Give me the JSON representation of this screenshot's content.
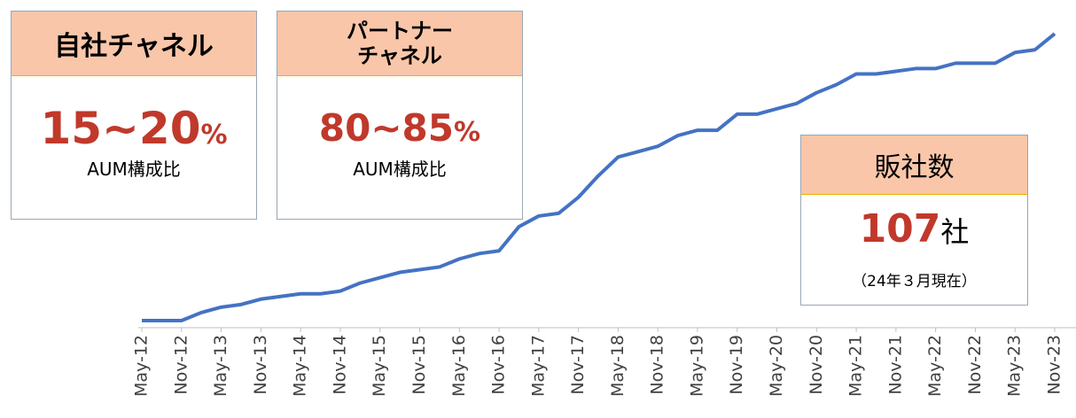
{
  "boxes": [
    {
      "title": "自社チャネル",
      "value": "15~20",
      "unit": "%",
      "caption": "AUM構成比"
    },
    {
      "title": "パートナーチャネル",
      "value": "80~85",
      "unit": "%",
      "caption": "AUM構成比"
    }
  ],
  "count_box": {
    "title": "販社数",
    "value": "107",
    "unit": "社",
    "note": "（24年３月現在）"
  },
  "chart_data": {
    "type": "line",
    "categories": [
      "May-12",
      null,
      "Nov-12",
      null,
      "May-13",
      null,
      "Nov-13",
      null,
      "May-14",
      null,
      "Nov-14",
      null,
      "May-15",
      null,
      "Nov-15",
      null,
      "May-16",
      null,
      "Nov-16",
      null,
      "May-17",
      null,
      "Nov-17",
      null,
      "May-18",
      null,
      "Nov-18",
      null,
      "May-19",
      null,
      "Nov-19",
      null,
      "May-20",
      null,
      "Nov-20",
      null,
      "May-21",
      null,
      "Nov-21",
      null,
      "May-22",
      null,
      "Nov-22",
      null,
      "May-23",
      null,
      "Nov-23"
    ],
    "series": [
      {
        "name": "販社数",
        "color": "#4472c4",
        "values": [
          0,
          0,
          0,
          3,
          5,
          6,
          8,
          9,
          10,
          10,
          11,
          14,
          16,
          18,
          19,
          20,
          23,
          25,
          26,
          35,
          39,
          40,
          46,
          54,
          61,
          63,
          65,
          69,
          71,
          71,
          77,
          77,
          79,
          81,
          85,
          88,
          92,
          92,
          93,
          94,
          94,
          96,
          96,
          96,
          100,
          101,
          107
        ]
      }
    ],
    "ylim": [
      0,
      110
    ]
  }
}
